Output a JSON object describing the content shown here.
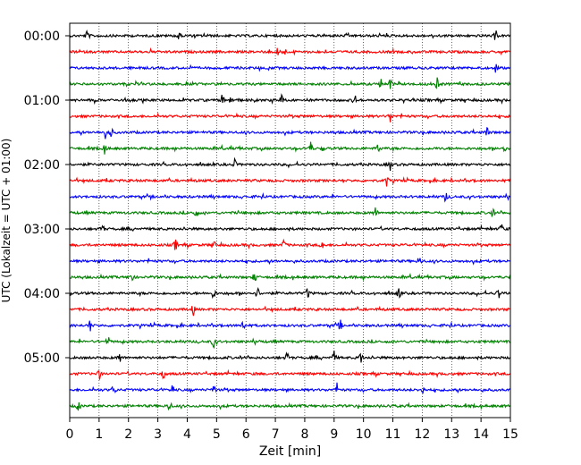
{
  "chart_data": {
    "type": "line",
    "title": "",
    "xlabel": "Zeit  [min]",
    "ylabel": "UTC (Lokalzeit = UTC + 01:00)",
    "xlim": [
      0,
      15
    ],
    "x_ticks": [
      "0",
      "1",
      "2",
      "3",
      "4",
      "5",
      "6",
      "7",
      "8",
      "9",
      "10",
      "11",
      "12",
      "13",
      "14",
      "15"
    ],
    "y_tick_labels": [
      "00:00",
      "01:00",
      "02:00",
      "03:00",
      "04:00",
      "05:00"
    ],
    "grid": "vertical dotted at each minute",
    "trace_colors": [
      "#000000",
      "#ff0000",
      "#0000ff",
      "#008000"
    ],
    "trace_count": 24,
    "trace_interval_minutes": 15,
    "traces": [
      {
        "start": "00:00",
        "color": "black",
        "events_min": [
          0.6,
          3.7,
          14.5
        ]
      },
      {
        "start": "00:15",
        "color": "red",
        "events_min": [
          7.1,
          7.3
        ]
      },
      {
        "start": "00:30",
        "color": "blue",
        "events_min": [
          14.5
        ]
      },
      {
        "start": "00:45",
        "color": "green",
        "events_min": [
          10.6,
          10.9,
          12.5
        ]
      },
      {
        "start": "01:00",
        "color": "black",
        "events_min": [
          5.2,
          5.5,
          7.2,
          9.7
        ]
      },
      {
        "start": "01:15",
        "color": "red",
        "events_min": [
          10.9
        ]
      },
      {
        "start": "01:30",
        "color": "blue",
        "events_min": [
          1.2,
          1.4,
          14.2
        ]
      },
      {
        "start": "01:45",
        "color": "green",
        "events_min": [
          1.2,
          8.2,
          10.5,
          14.8
        ]
      },
      {
        "start": "02:00",
        "color": "black",
        "events_min": [
          5.6,
          10.9
        ]
      },
      {
        "start": "02:15",
        "color": "red",
        "events_min": [
          10.8
        ]
      },
      {
        "start": "02:30",
        "color": "blue",
        "events_min": [
          12.8
        ]
      },
      {
        "start": "02:45",
        "color": "green",
        "events_min": [
          4.3,
          10.4,
          14.4
        ]
      },
      {
        "start": "03:00",
        "color": "black",
        "events_min": [
          1.1,
          14.7
        ]
      },
      {
        "start": "03:15",
        "color": "red",
        "events_min": [
          3.6,
          4.9,
          7.3,
          8.6
        ]
      },
      {
        "start": "03:30",
        "color": "blue",
        "events_min": [
          11.9
        ]
      },
      {
        "start": "03:45",
        "color": "green",
        "events_min": [
          2.1,
          6.3
        ]
      },
      {
        "start": "04:00",
        "color": "black",
        "events_min": [
          4.9,
          6.4,
          8.1,
          11.2,
          14.6
        ]
      },
      {
        "start": "04:15",
        "color": "red",
        "events_min": [
          4.2
        ]
      },
      {
        "start": "04:30",
        "color": "blue",
        "events_min": [
          0.7,
          5.9,
          9.2
        ]
      },
      {
        "start": "04:45",
        "color": "green",
        "events_min": [
          1.3,
          4.9
        ]
      },
      {
        "start": "05:00",
        "color": "black",
        "events_min": [
          1.7,
          7.4,
          9.0,
          9.9
        ]
      },
      {
        "start": "05:15",
        "color": "red",
        "events_min": [
          1.0,
          3.2
        ]
      },
      {
        "start": "05:30",
        "color": "blue",
        "events_min": [
          1.5,
          3.5,
          4.9,
          9.1,
          12.0
        ]
      },
      {
        "start": "05:45",
        "color": "green",
        "events_min": [
          0.3,
          3.4
        ]
      }
    ]
  }
}
